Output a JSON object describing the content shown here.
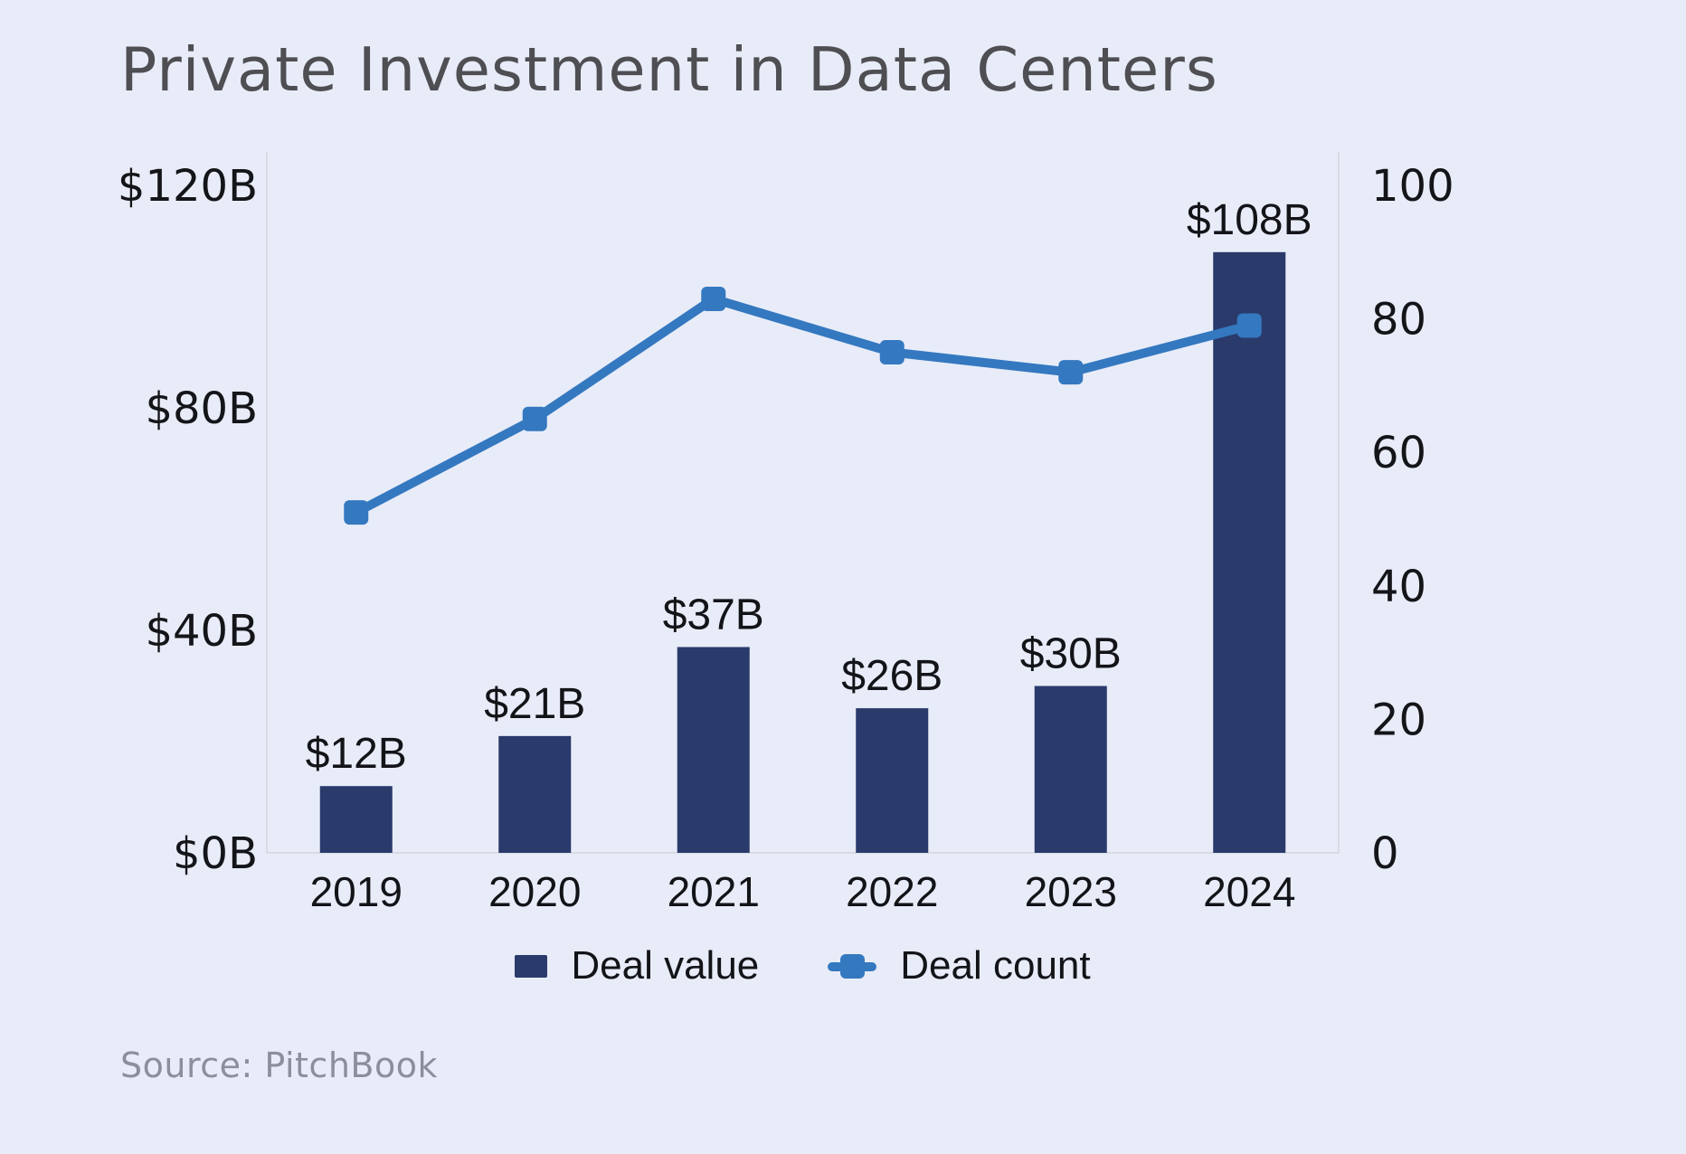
{
  "title": "Private Investment in Data Centers",
  "source": "Source: PitchBook",
  "legend": {
    "deal_value_label": "Deal value",
    "deal_count_label": "Deal count"
  },
  "colors": {
    "background": "#e8ecf8",
    "bar": "#293a6b",
    "line": "#3478c0",
    "axis_line": "#d8dbe4",
    "title_text": "#4e4e53",
    "tick_text": "#141519",
    "source_text": "#8b8f9b"
  },
  "chart_data": {
    "type": "bar",
    "subtype": "bar+line dual axis",
    "categories": [
      "2019",
      "2020",
      "2021",
      "2022",
      "2023",
      "2024"
    ],
    "series": [
      {
        "name": "Deal value",
        "type": "bar",
        "axis": "left",
        "values": [
          12,
          21,
          37,
          26,
          30,
          108
        ],
        "labels": [
          "$12B",
          "$21B",
          "$37B",
          "$26B",
          "$30B",
          "$108B"
        ],
        "color": "#293a6b"
      },
      {
        "name": "Deal count",
        "type": "line",
        "axis": "right",
        "values": [
          51,
          65,
          83,
          75,
          72,
          79
        ],
        "color": "#3478c0"
      }
    ],
    "left_axis": {
      "ticks": [
        "$0B",
        "$40B",
        "$80B",
        "$120B"
      ],
      "tick_values": [
        0,
        40,
        80,
        120
      ],
      "range": [
        0,
        120
      ]
    },
    "right_axis": {
      "ticks": [
        "0",
        "20",
        "40",
        "60",
        "80",
        "100"
      ],
      "tick_values": [
        0,
        20,
        40,
        60,
        80,
        100
      ],
      "range": [
        0,
        100
      ]
    },
    "grid": false,
    "legend_position": "bottom"
  }
}
